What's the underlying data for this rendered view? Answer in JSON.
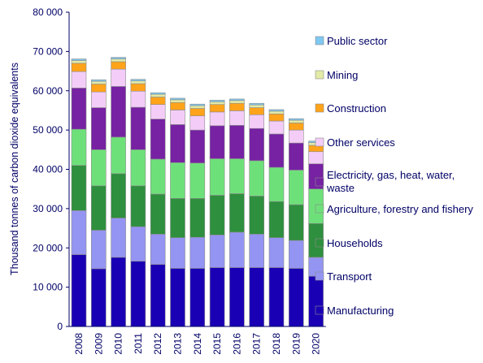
{
  "chart_data": {
    "type": "stacked-bar",
    "title": "",
    "ylabel": "Thousand tonnes of carbon dioxide equivalents",
    "xlabel": "",
    "ylim": [
      0,
      80000
    ],
    "yticks": [
      0,
      10000,
      20000,
      30000,
      40000,
      50000,
      60000,
      70000,
      80000
    ],
    "ytick_labels": [
      "0",
      "10 000",
      "20 000",
      "30 000",
      "40 000",
      "50 000",
      "60 000",
      "70 000",
      "80 000"
    ],
    "grid": false,
    "legend_placement": "right",
    "categories": [
      "2008",
      "2009",
      "2010",
      "2011",
      "2012",
      "2013",
      "2014",
      "2015",
      "2016",
      "2017",
      "2018",
      "2019",
      "2020"
    ],
    "series": [
      {
        "name": "Manufacturing",
        "color": "#1a00b4",
        "values": [
          18300,
          14700,
          17600,
          16600,
          15800,
          14800,
          14800,
          15000,
          15000,
          15000,
          15000,
          14800,
          12800
        ]
      },
      {
        "name": "Transport",
        "color": "#9494f2",
        "values": [
          11200,
          9800,
          10000,
          8800,
          7700,
          7800,
          7900,
          8300,
          9000,
          8500,
          7600,
          7100,
          4800
        ]
      },
      {
        "name": "Households",
        "color": "#2e8f3e",
        "values": [
          11500,
          11300,
          11300,
          10400,
          10200,
          10000,
          9900,
          10100,
          9800,
          9700,
          9200,
          9100,
          8600
        ]
      },
      {
        "name": "Agriculture, forestry and fishery",
        "color": "#6ee07a",
        "values": [
          9200,
          9200,
          9300,
          9200,
          8900,
          9100,
          9000,
          9300,
          8900,
          9000,
          8700,
          8800,
          8800
        ]
      },
      {
        "name": "Electricity, gas, heat, water, waste",
        "color": "#7622a3",
        "values": [
          10500,
          10700,
          12900,
          10800,
          10200,
          9700,
          8400,
          8400,
          8500,
          8200,
          8500,
          6900,
          6400
        ]
      },
      {
        "name": "Other services",
        "color": "#f3cdf7",
        "values": [
          4200,
          4000,
          4400,
          4100,
          3700,
          3700,
          3600,
          3500,
          3700,
          3500,
          3300,
          3300,
          3100
        ]
      },
      {
        "name": "Construction",
        "color": "#ffa31a",
        "values": [
          2100,
          2000,
          1900,
          1900,
          1900,
          1900,
          1900,
          1900,
          1900,
          1800,
          1800,
          1800,
          1600
        ]
      },
      {
        "name": "Mining",
        "color": "#e3eaa6",
        "values": [
          700,
          700,
          700,
          700,
          700,
          700,
          700,
          700,
          700,
          700,
          700,
          700,
          700
        ]
      },
      {
        "name": "Public sector",
        "color": "#7ec8f2",
        "values": [
          400,
          400,
          400,
          400,
          400,
          400,
          400,
          400,
          400,
          400,
          400,
          400,
          400
        ]
      }
    ]
  }
}
